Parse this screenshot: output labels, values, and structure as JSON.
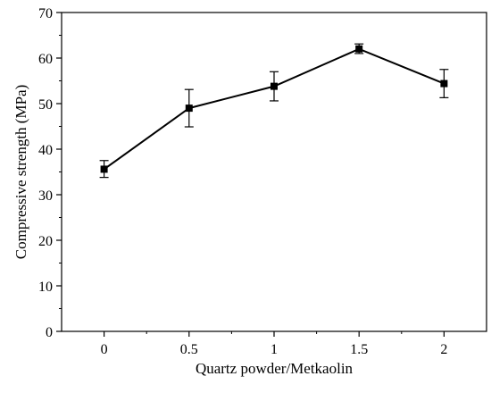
{
  "chart_data": {
    "type": "line",
    "title": "",
    "xlabel": "Quartz powder/Metkaolin",
    "ylabel": "Compressive strength (MPa)",
    "x": [
      0,
      0.5,
      1,
      1.5,
      2
    ],
    "x_tick_labels": [
      "0",
      "0.5",
      "1",
      "1.5",
      "2"
    ],
    "xlim": [
      -0.25,
      2.25
    ],
    "ylim": [
      0,
      70
    ],
    "y_ticks": [
      0,
      10,
      20,
      30,
      40,
      50,
      60,
      70
    ],
    "y_tick_labels": [
      "0",
      "10",
      "20",
      "30",
      "40",
      "50",
      "60",
      "70"
    ],
    "grid": false,
    "legend": "none",
    "series": [
      {
        "values": [
          35.6,
          49.0,
          53.8,
          62.0,
          54.4
        ],
        "error_low": [
          33.8,
          44.9,
          50.6,
          61.0,
          51.3
        ],
        "error_high": [
          37.5,
          53.1,
          57.0,
          63.1,
          57.5
        ],
        "color": "#000000",
        "marker": "square"
      }
    ]
  }
}
